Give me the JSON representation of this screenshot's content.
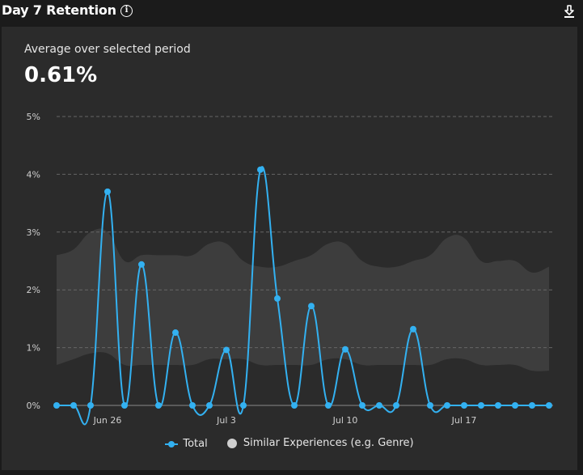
{
  "header": {
    "title": "Day 7 Retention",
    "info_icon": "info-icon",
    "download_icon": "download-icon"
  },
  "summary": {
    "label": "Average over selected period",
    "value": "0.61%"
  },
  "colors": {
    "total_line": "#33b1f1",
    "similar_band": "#3d3d3d",
    "card_bg": "#2b2b2b",
    "page_bg": "#1b1b1b",
    "grid": "#666666"
  },
  "legend": {
    "total_label": "Total",
    "similar_label": "Similar Experiences (e.g. Genre)"
  },
  "chart_data": {
    "type": "line",
    "title": "Day 7 Retention",
    "xlabel": "",
    "ylabel": "",
    "ylim": [
      0,
      5
    ],
    "y_ticks": [
      "0%",
      "1%",
      "2%",
      "3%",
      "4%",
      "5%"
    ],
    "x_tick_labels": [
      {
        "index": 3,
        "label": "Jun 26"
      },
      {
        "index": 10,
        "label": "Jul 3"
      },
      {
        "index": 17,
        "label": "Jul 10"
      },
      {
        "index": 24,
        "label": "Jul 17"
      }
    ],
    "x": [
      "Jun 23",
      "Jun 24",
      "Jun 25",
      "Jun 26",
      "Jun 27",
      "Jun 28",
      "Jun 29",
      "Jun 30",
      "Jul 1",
      "Jul 2",
      "Jul 3",
      "Jul 4",
      "Jul 5",
      "Jul 6",
      "Jul 7",
      "Jul 8",
      "Jul 9",
      "Jul 10",
      "Jul 11",
      "Jul 12",
      "Jul 13",
      "Jul 14",
      "Jul 15",
      "Jul 16",
      "Jul 17",
      "Jul 18",
      "Jul 19",
      "Jul 20",
      "Jul 21",
      "Jul 22"
    ],
    "grid": true,
    "legend_position": "bottom",
    "series": [
      {
        "name": "Total",
        "type": "line",
        "values": [
          0,
          0,
          0,
          3.7,
          0,
          2.44,
          0,
          1.26,
          0,
          0,
          0.96,
          0,
          4.08,
          1.85,
          0,
          1.72,
          0,
          0.97,
          0,
          0,
          0,
          1.32,
          0,
          0,
          0,
          0,
          0,
          0,
          0,
          0
        ]
      },
      {
        "name": "Similar Experiences (e.g. Genre)",
        "type": "range-area",
        "upper": [
          2.6,
          2.7,
          3.0,
          3.0,
          2.5,
          2.6,
          2.6,
          2.6,
          2.6,
          2.8,
          2.8,
          2.5,
          2.4,
          2.4,
          2.5,
          2.6,
          2.8,
          2.8,
          2.5,
          2.4,
          2.4,
          2.5,
          2.6,
          2.9,
          2.9,
          2.5,
          2.5,
          2.5,
          2.3,
          2.4
        ],
        "lower": [
          0.7,
          0.8,
          0.9,
          0.9,
          0.7,
          0.7,
          0.7,
          0.7,
          0.7,
          0.8,
          0.8,
          0.8,
          0.7,
          0.7,
          0.7,
          0.7,
          0.8,
          0.8,
          0.7,
          0.7,
          0.7,
          0.7,
          0.7,
          0.8,
          0.8,
          0.7,
          0.7,
          0.7,
          0.6,
          0.6
        ]
      }
    ]
  }
}
